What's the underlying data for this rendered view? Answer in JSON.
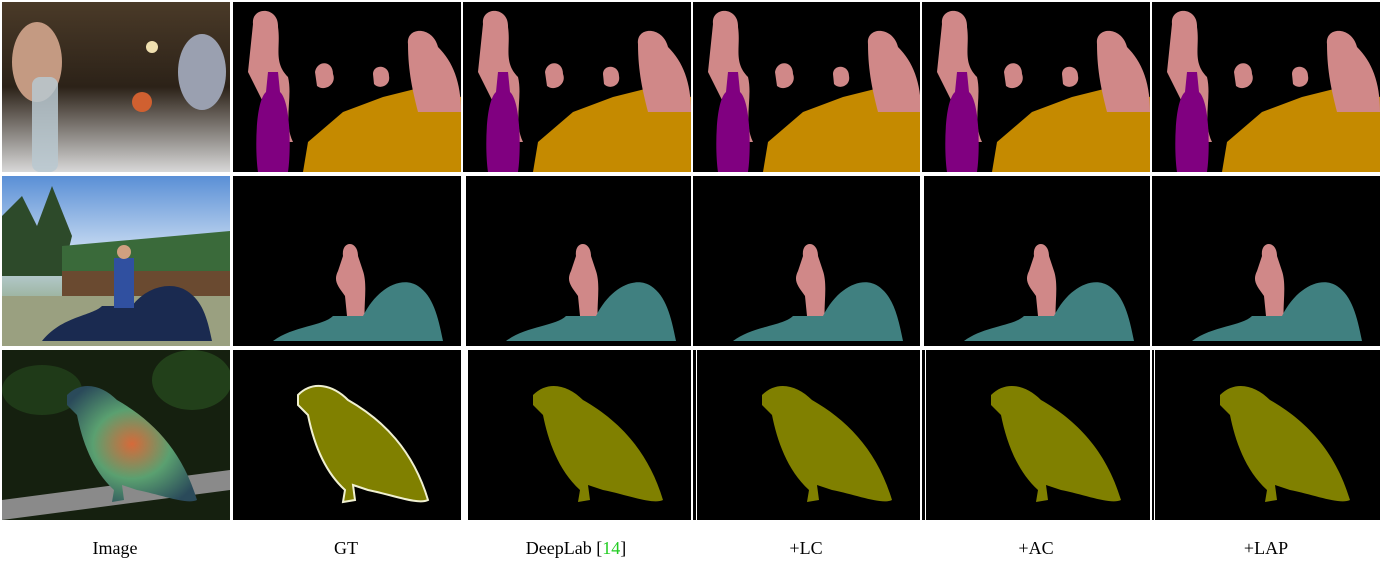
{
  "columns": [
    {
      "label": "Image"
    },
    {
      "label": "GT"
    },
    {
      "label": "DeepLab [",
      "cite": "14",
      "label_end": "]"
    },
    {
      "label": "+LC"
    },
    {
      "label": "+AC"
    },
    {
      "label": "+LAP"
    }
  ]
}
